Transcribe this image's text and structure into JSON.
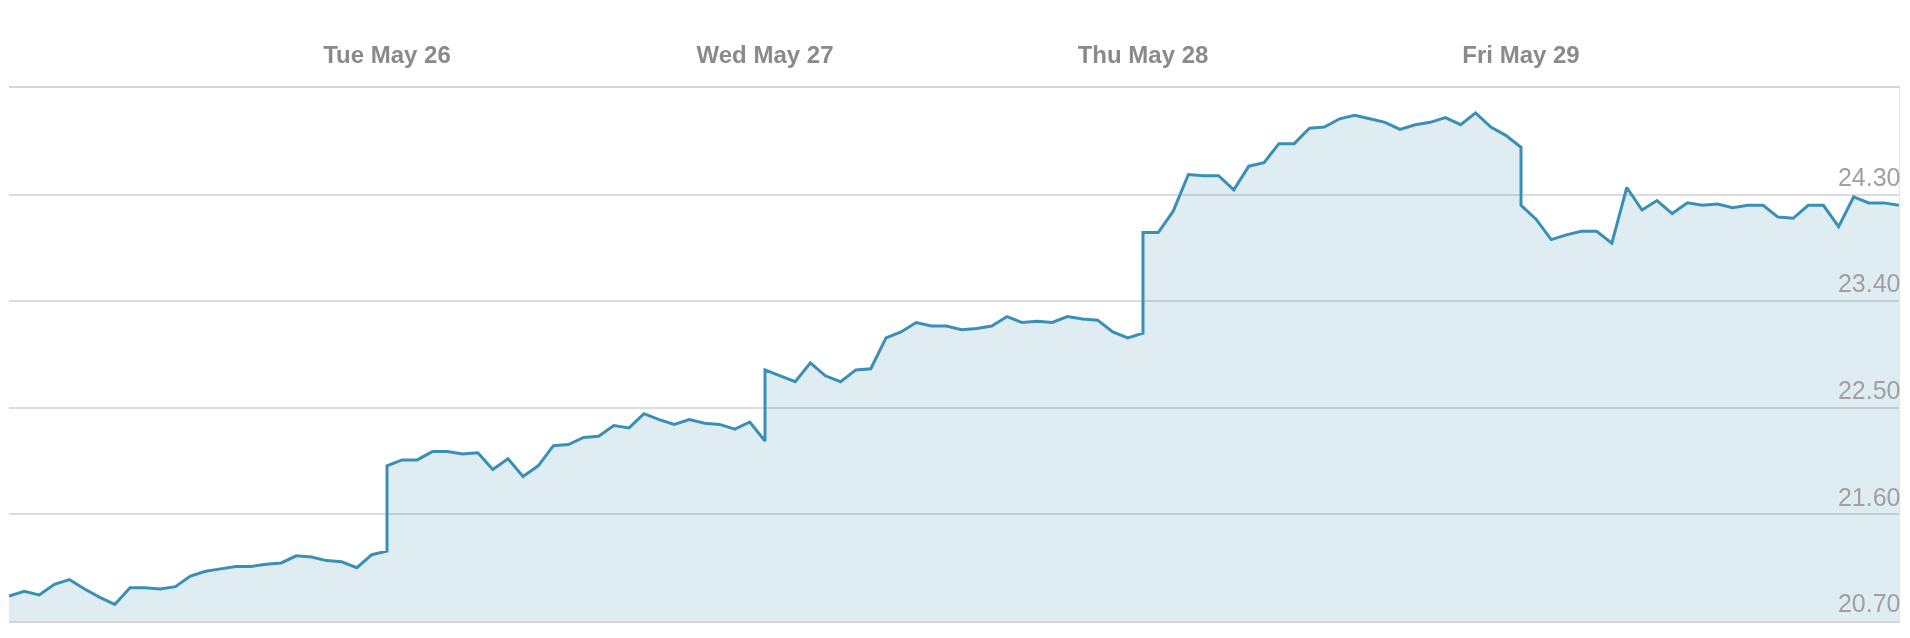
{
  "chart_data": {
    "type": "area",
    "x": [
      "--05-25T00:00",
      "--05-25T00:58",
      "--05-25T01:55",
      "--05-25T02:53",
      "--05-25T03:50",
      "--05-25T04:48",
      "--05-25T05:46",
      "--05-25T06:43",
      "--05-25T07:41",
      "--05-25T08:38",
      "--05-25T09:36",
      "--05-25T10:34",
      "--05-25T11:31",
      "--05-25T12:29",
      "--05-25T13:26",
      "--05-25T14:24",
      "--05-25T15:22",
      "--05-25T16:19",
      "--05-25T17:17",
      "--05-25T18:14",
      "--05-25T19:12",
      "--05-25T20:10",
      "--05-25T21:07",
      "--05-25T22:05",
      "--05-25T23:02",
      "--05-26T00:00",
      "--05-26T00:00",
      "--05-26T00:58",
      "--05-26T01:55",
      "--05-26T02:53",
      "--05-26T03:50",
      "--05-26T04:48",
      "--05-26T05:46",
      "--05-26T06:43",
      "--05-26T07:41",
      "--05-26T08:38",
      "--05-26T09:36",
      "--05-26T10:34",
      "--05-26T11:31",
      "--05-26T12:29",
      "--05-26T13:26",
      "--05-26T14:24",
      "--05-26T15:22",
      "--05-26T16:19",
      "--05-26T17:17",
      "--05-26T18:14",
      "--05-26T19:12",
      "--05-26T20:10",
      "--05-26T21:07",
      "--05-26T22:05",
      "--05-26T23:02",
      "--05-27T00:00",
      "--05-27T00:00",
      "--05-27T00:58",
      "--05-27T01:55",
      "--05-27T02:53",
      "--05-27T03:50",
      "--05-27T04:48",
      "--05-27T05:46",
      "--05-27T06:43",
      "--05-27T07:41",
      "--05-27T08:38",
      "--05-27T09:36",
      "--05-27T10:34",
      "--05-27T11:31",
      "--05-27T12:29",
      "--05-27T13:26",
      "--05-27T14:24",
      "--05-27T15:22",
      "--05-27T16:19",
      "--05-27T17:17",
      "--05-27T18:14",
      "--05-27T19:12",
      "--05-27T20:10",
      "--05-27T21:07",
      "--05-27T22:05",
      "--05-27T23:02",
      "--05-28T00:00",
      "--05-28T00:00",
      "--05-28T00:58",
      "--05-28T01:55",
      "--05-28T02:53",
      "--05-28T03:50",
      "--05-28T04:48",
      "--05-28T05:46",
      "--05-28T06:43",
      "--05-28T07:41",
      "--05-28T08:38",
      "--05-28T09:36",
      "--05-28T10:34",
      "--05-28T11:31",
      "--05-28T12:29",
      "--05-28T13:26",
      "--05-28T14:24",
      "--05-28T15:22",
      "--05-28T16:19",
      "--05-28T17:17",
      "--05-28T18:14",
      "--05-28T19:12",
      "--05-28T20:10",
      "--05-28T21:07",
      "--05-28T22:05",
      "--05-28T23:02",
      "--05-29T00:00",
      "--05-29T00:00",
      "--05-29T00:58",
      "--05-29T01:55",
      "--05-29T02:53",
      "--05-29T03:50",
      "--05-29T04:48",
      "--05-29T05:46",
      "--05-29T06:43",
      "--05-29T07:41",
      "--05-29T08:38",
      "--05-29T09:36",
      "--05-29T10:34",
      "--05-29T11:31",
      "--05-29T12:29",
      "--05-29T13:26",
      "--05-29T14:24",
      "--05-29T15:22",
      "--05-29T16:19",
      "--05-29T17:17",
      "--05-29T18:14",
      "--05-29T19:12",
      "--05-29T20:10",
      "--05-29T21:07",
      "--05-29T22:05",
      "--05-29T23:02",
      "--05-30T00:00"
    ],
    "series": [
      {
        "color": "#3a8fb7",
        "values": [
          20.91,
          20.95,
          20.92,
          21.01,
          21.05,
          20.97,
          20.9,
          20.84,
          20.98,
          20.98,
          20.97,
          20.99,
          21.08,
          21.12,
          21.14,
          21.16,
          21.16,
          21.18,
          21.19,
          21.25,
          21.24,
          21.21,
          21.2,
          21.15,
          21.26,
          21.29,
          22.01,
          22.06,
          22.06,
          22.13,
          22.13,
          22.11,
          22.12,
          21.98,
          22.07,
          21.92,
          22.01,
          22.18,
          22.19,
          22.25,
          22.26,
          22.35,
          22.33,
          22.45,
          22.4,
          22.36,
          22.4,
          22.37,
          22.36,
          22.32,
          22.38,
          22.22,
          22.82,
          22.77,
          22.72,
          22.88,
          22.77,
          22.72,
          22.82,
          22.83,
          23.09,
          23.14,
          23.22,
          23.19,
          23.19,
          23.16,
          23.17,
          23.19,
          23.27,
          23.22,
          23.23,
          23.22,
          23.27,
          23.25,
          23.24,
          23.14,
          23.09,
          23.13,
          23.98,
          23.98,
          24.16,
          24.47,
          24.46,
          24.46,
          24.34,
          24.54,
          24.57,
          24.73,
          24.73,
          24.86,
          24.87,
          24.94,
          24.97,
          24.94,
          24.91,
          24.85,
          24.89,
          24.91,
          24.95,
          24.89,
          24.99,
          24.87,
          24.8,
          24.7,
          24.21,
          24.09,
          23.92,
          23.96,
          23.99,
          23.99,
          23.89,
          24.36,
          24.17,
          24.25,
          24.14,
          24.23,
          24.21,
          24.22,
          24.19,
          24.21,
          24.21,
          24.11,
          24.1,
          24.21,
          24.21,
          24.03,
          24.28,
          24.23,
          24.23,
          24.21
        ]
      }
    ],
    "xlim": [
      "--05-25T00:00",
      "--05-30T00:00"
    ],
    "xticks": [
      {
        "value": "--05-26",
        "label": "Tue May 26"
      },
      {
        "value": "--05-27",
        "label": "Wed May 27"
      },
      {
        "value": "--05-28",
        "label": "Thu May 28"
      },
      {
        "value": "--05-29",
        "label": "Fri May 29"
      }
    ],
    "ylim": [
      20.7,
      25.2
    ],
    "yticks": [
      {
        "value": 20.7,
        "label": "20.70"
      },
      {
        "value": 21.6,
        "label": "21.60"
      },
      {
        "value": 22.5,
        "label": "22.50"
      },
      {
        "value": 23.4,
        "label": "23.40"
      },
      {
        "value": 24.3,
        "label": "24.30"
      }
    ],
    "grid": "y",
    "legend": false,
    "marker": "none",
    "line_style": "solid"
  }
}
